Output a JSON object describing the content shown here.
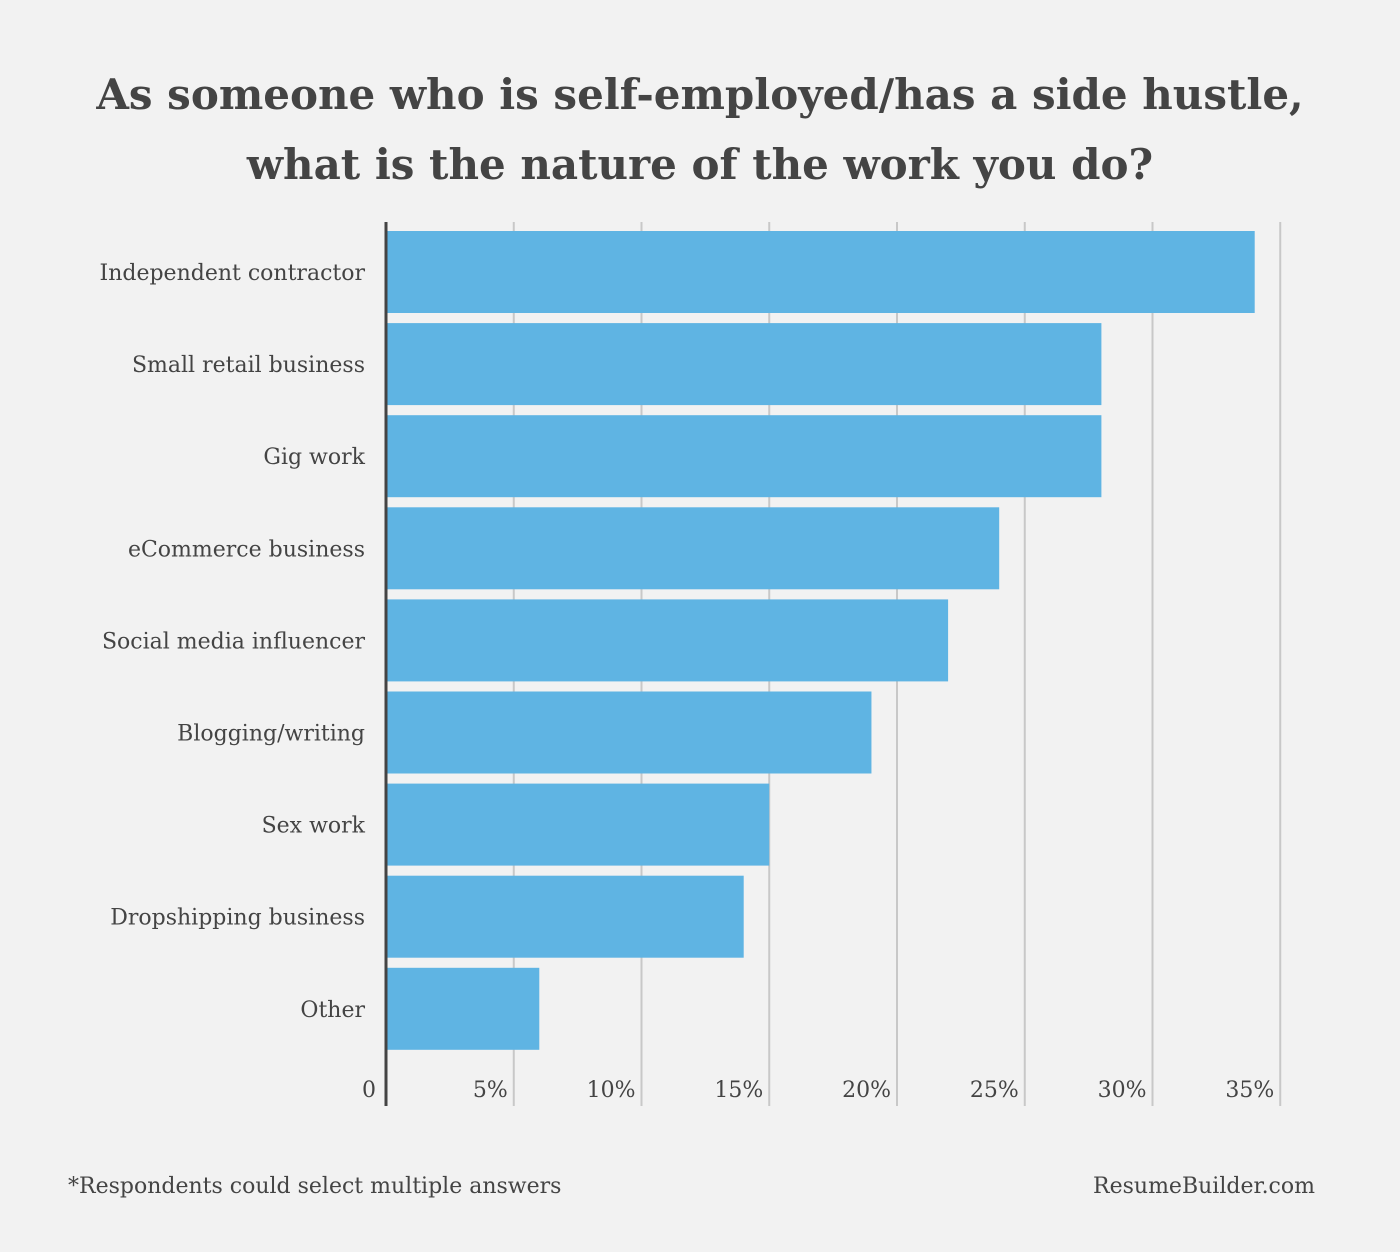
{
  "title": {
    "line1": "As someone who is self-employed/has a side hustle,",
    "line2": "what is the nature of the work you do?"
  },
  "footnote": "*Respondents could select multiple answers",
  "source": "ResumeBuilder.com",
  "colors": {
    "bar": "#5fb4e3",
    "grid": "#c8c8c8",
    "axis": "#444444",
    "background": "#f2f2f2",
    "text": "#444444"
  },
  "chart_data": {
    "type": "bar",
    "orientation": "horizontal",
    "categories": [
      "Independent contractor",
      "Small retail business",
      "Gig work",
      "eCommerce business",
      "Social media influencer",
      "Blogging/writing",
      "Sex work",
      "Dropshipping business",
      "Other"
    ],
    "values": [
      34,
      28,
      28,
      24,
      22,
      19,
      15,
      14,
      6
    ],
    "xlim": [
      0,
      35
    ],
    "xticks": [
      0,
      5,
      10,
      15,
      20,
      25,
      30,
      35
    ],
    "xtick_labels": [
      "0",
      "5%",
      "10%",
      "15%",
      "20%",
      "25%",
      "30%",
      "35%"
    ],
    "grid": true
  }
}
